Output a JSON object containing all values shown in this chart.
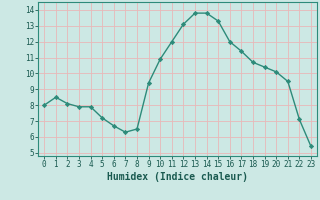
{
  "x": [
    0,
    1,
    2,
    3,
    4,
    5,
    6,
    7,
    8,
    9,
    10,
    11,
    12,
    13,
    14,
    15,
    16,
    17,
    18,
    19,
    20,
    21,
    22,
    23
  ],
  "y": [
    8.0,
    8.5,
    8.1,
    7.9,
    7.9,
    7.2,
    6.7,
    6.3,
    6.5,
    9.4,
    10.9,
    12.0,
    13.1,
    13.8,
    13.8,
    13.3,
    12.0,
    11.4,
    10.7,
    10.4,
    10.1,
    9.5,
    7.1,
    5.4
  ],
  "line_color": "#2d8b7a",
  "marker": "D",
  "markersize": 2.2,
  "linewidth": 1.0,
  "xlabel": "Humidex (Indice chaleur)",
  "xlim": [
    -0.5,
    23.5
  ],
  "ylim": [
    4.8,
    14.5
  ],
  "yticks": [
    5,
    6,
    7,
    8,
    9,
    10,
    11,
    12,
    13,
    14
  ],
  "xticks": [
    0,
    1,
    2,
    3,
    4,
    5,
    6,
    7,
    8,
    9,
    10,
    11,
    12,
    13,
    14,
    15,
    16,
    17,
    18,
    19,
    20,
    21,
    22,
    23
  ],
  "bg_color": "#cce8e4",
  "grid_color": "#e8b8b8",
  "tick_color": "#1a5a50",
  "label_color": "#1a5a50",
  "xlabel_fontsize": 7,
  "tick_fontsize": 5.5,
  "spine_color": "#2d8b7a"
}
